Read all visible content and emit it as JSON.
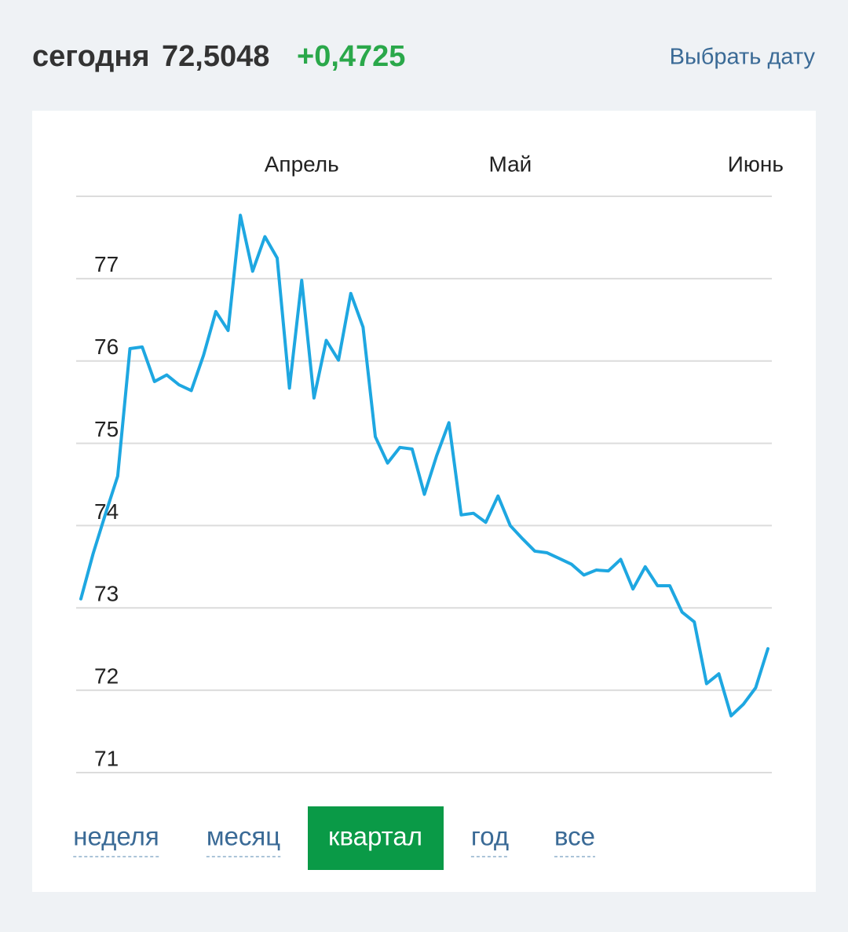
{
  "header": {
    "label": "сегодня",
    "value": "72,5048",
    "change": "+0,4725",
    "date_link": "Выбрать дату"
  },
  "chart_data": {
    "type": "line",
    "categories": [
      null,
      null,
      null,
      null,
      null,
      null,
      null,
      null,
      null,
      null,
      null,
      null,
      null,
      null,
      null,
      null,
      null,
      null,
      "Апрель",
      null,
      null,
      null,
      null,
      null,
      null,
      null,
      null,
      null,
      null,
      null,
      null,
      null,
      null,
      null,
      null,
      "Май",
      null,
      null,
      null,
      null,
      null,
      null,
      null,
      null,
      null,
      null,
      null,
      null,
      null,
      null,
      null,
      null,
      null,
      null,
      null,
      "Июнь",
      null
    ],
    "values": [
      73.11,
      73.66,
      74.14,
      74.6,
      76.15,
      76.17,
      75.75,
      75.83,
      75.71,
      75.64,
      76.07,
      76.6,
      76.37,
      77.77,
      77.09,
      77.51,
      77.25,
      75.67,
      76.98,
      75.55,
      76.25,
      76.01,
      76.82,
      76.41,
      75.08,
      74.76,
      74.95,
      74.93,
      74.38,
      74.85,
      75.25,
      74.13,
      74.15,
      74.04,
      74.36,
      74.0,
      73.84,
      73.69,
      73.67,
      73.6,
      73.53,
      73.4,
      73.46,
      73.45,
      73.59,
      73.23,
      73.5,
      73.27,
      73.27,
      72.95,
      72.83,
      72.08,
      72.2,
      71.69,
      71.83,
      72.03,
      72.5048
    ],
    "color": "#1ea7e1",
    "ylim": [
      71,
      78
    ],
    "yticks": [
      71,
      72,
      73,
      74,
      75,
      76,
      77
    ],
    "grid": true
  },
  "period_buttons": {
    "items": [
      "неделя",
      "месяц",
      "квартал",
      "год",
      "все"
    ],
    "active": 2
  }
}
